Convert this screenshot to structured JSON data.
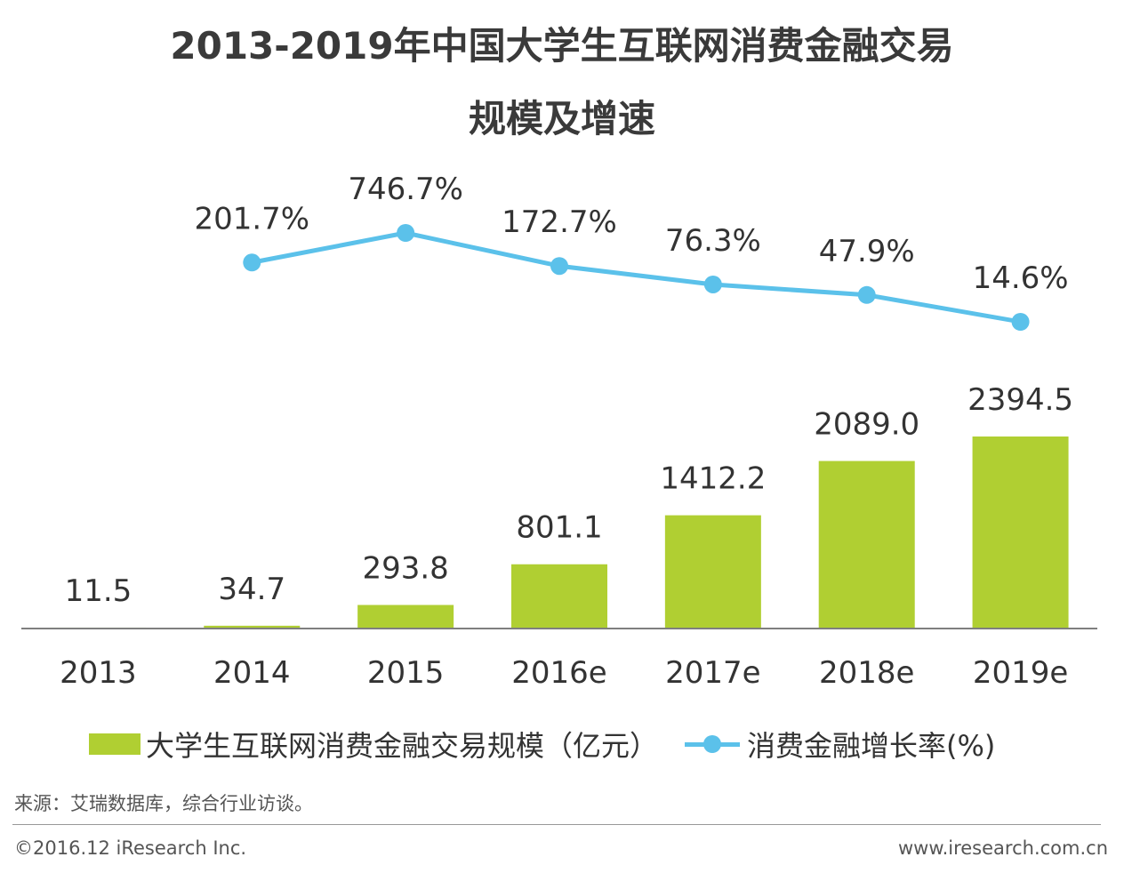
{
  "page": {
    "title_line1": "2013-2019年中国大学生互联网消费金融交易",
    "title_line2": "规模及增速",
    "source": "来源：艾瑞数据库，综合行业访谈。",
    "copyright": "©2016.12 iResearch Inc.",
    "website": "www.iresearch.com.cn"
  },
  "chart_data": {
    "type": "bar",
    "title": "2013-2019年中国大学生互联网消费金融交易规模及增速",
    "categories": [
      "2013",
      "2014",
      "2015",
      "2016e",
      "2017e",
      "2018e",
      "2019e"
    ],
    "series": [
      {
        "name": "大学生互联网消费金融交易规模（亿元）",
        "type": "bar",
        "values": [
          11.5,
          34.7,
          293.8,
          801.1,
          1412.2,
          2089.0,
          2394.5
        ],
        "labels": [
          "11.5",
          "34.7",
          "293.8",
          "801.1",
          "1412.2",
          "2089.0",
          "2394.5"
        ],
        "color": "#b0cf32"
      },
      {
        "name": "消费金融增长率(%)",
        "type": "line",
        "values": [
          null,
          201.7,
          746.7,
          172.7,
          76.3,
          47.9,
          14.6
        ],
        "labels": [
          "",
          "201.7%",
          "746.7%",
          "172.7%",
          "76.3%",
          "47.9%",
          "14.6%"
        ],
        "color": "#5bc1ea"
      }
    ],
    "legend": "bottom",
    "grid": false
  }
}
